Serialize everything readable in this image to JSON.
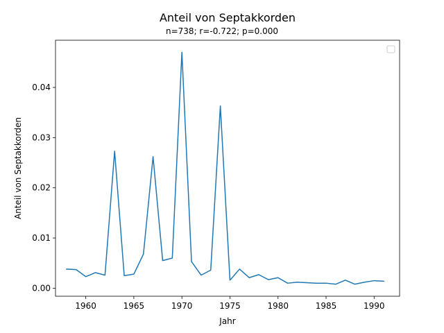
{
  "chart_data": {
    "type": "line",
    "title": "Anteil von Septakkorden",
    "subtitle": "n=738; r=-0.722; p=0.000",
    "xlabel": "Jahr",
    "ylabel": "Anteil von Septakkorden",
    "xlim": [
      1956.85,
      1992.65
    ],
    "ylim": [
      -0.0016,
      0.0494
    ],
    "xticks": [
      1960,
      1965,
      1970,
      1975,
      1980,
      1985,
      1990
    ],
    "xtick_labels": [
      "1960",
      "1965",
      "1970",
      "1975",
      "1980",
      "1985",
      "1990"
    ],
    "yticks": [
      0.0,
      0.01,
      0.02,
      0.03,
      0.04
    ],
    "ytick_labels": [
      "0.00",
      "0.01",
      "0.02",
      "0.03",
      "0.04"
    ],
    "grid": false,
    "legend": "top-right",
    "line_color": "#1f77b4",
    "series": [
      {
        "x": [
          1958,
          1959,
          1960,
          1961,
          1962,
          1963,
          1964,
          1965,
          1966,
          1967,
          1968,
          1969,
          1970,
          1971,
          1972,
          1973,
          1974,
          1975,
          1976,
          1977,
          1978,
          1979,
          1980,
          1981,
          1982,
          1983,
          1984,
          1985,
          1986,
          1987,
          1988,
          1989,
          1990,
          1991
        ],
        "values": [
          0.0038,
          0.0037,
          0.0023,
          0.0031,
          0.0026,
          0.0273,
          0.0025,
          0.0028,
          0.0068,
          0.0262,
          0.0055,
          0.006,
          0.047,
          0.0053,
          0.0026,
          0.0036,
          0.0363,
          0.0016,
          0.0038,
          0.0021,
          0.0027,
          0.0017,
          0.0021,
          0.001,
          0.0012,
          0.0011,
          0.001,
          0.001,
          0.0008,
          0.0016,
          0.0008,
          0.0012,
          0.0015,
          0.0014
        ]
      }
    ]
  }
}
